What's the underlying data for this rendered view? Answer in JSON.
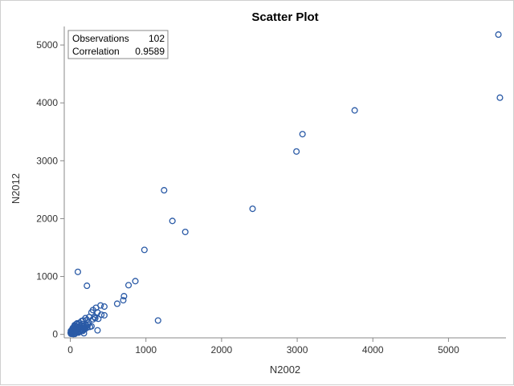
{
  "chart_data": {
    "type": "scatter",
    "title": "Scatter Plot",
    "xlabel": "N2002",
    "ylabel": "N2012",
    "xlim": [
      -80,
      5760
    ],
    "ylim": [
      -60,
      5320
    ],
    "xticks": [
      0,
      1000,
      2000,
      3000,
      4000,
      5000
    ],
    "yticks": [
      0,
      1000,
      2000,
      3000,
      4000,
      5000
    ],
    "grid": false,
    "marker": "circle-open",
    "color": "#2a5aa6",
    "inset": {
      "position": "top-left",
      "rows": [
        {
          "label": "Observations",
          "value": "102"
        },
        {
          "label": "Correlation",
          "value": "0.9589"
        }
      ]
    },
    "points": [
      [
        5660,
        5180
      ],
      [
        5680,
        4090
      ],
      [
        3760,
        3870
      ],
      [
        3070,
        3460
      ],
      [
        2990,
        3160
      ],
      [
        2410,
        2170
      ],
      [
        1240,
        2490
      ],
      [
        1350,
        1960
      ],
      [
        1520,
        1770
      ],
      [
        980,
        1460
      ],
      [
        860,
        920
      ],
      [
        770,
        850
      ],
      [
        710,
        660
      ],
      [
        700,
        590
      ],
      [
        620,
        530
      ],
      [
        1160,
        240
      ],
      [
        100,
        1080
      ],
      [
        220,
        840
      ],
      [
        450,
        480
      ],
      [
        400,
        500
      ],
      [
        340,
        460
      ],
      [
        300,
        420
      ],
      [
        280,
        380
      ],
      [
        360,
        380
      ],
      [
        410,
        340
      ],
      [
        450,
        330
      ],
      [
        250,
        300
      ],
      [
        200,
        280
      ],
      [
        220,
        250
      ],
      [
        170,
        240
      ],
      [
        150,
        230
      ],
      [
        120,
        200
      ],
      [
        90,
        190
      ],
      [
        80,
        180
      ],
      [
        110,
        170
      ],
      [
        60,
        150
      ],
      [
        130,
        150
      ],
      [
        180,
        140
      ],
      [
        260,
        130
      ],
      [
        300,
        260
      ],
      [
        330,
        280
      ],
      [
        370,
        270
      ],
      [
        240,
        200
      ],
      [
        200,
        170
      ],
      [
        160,
        180
      ],
      [
        140,
        120
      ],
      [
        100,
        110
      ],
      [
        70,
        100
      ],
      [
        50,
        90
      ],
      [
        40,
        80
      ],
      [
        30,
        70
      ],
      [
        20,
        60
      ],
      [
        15,
        50
      ],
      [
        10,
        40
      ],
      [
        25,
        30
      ],
      [
        35,
        25
      ],
      [
        45,
        40
      ],
      [
        55,
        55
      ],
      [
        65,
        45
      ],
      [
        75,
        65
      ],
      [
        85,
        75
      ],
      [
        95,
        85
      ],
      [
        105,
        95
      ],
      [
        115,
        105
      ],
      [
        125,
        115
      ],
      [
        135,
        95
      ],
      [
        145,
        80
      ],
      [
        155,
        70
      ],
      [
        165,
        60
      ],
      [
        175,
        110
      ],
      [
        185,
        100
      ],
      [
        195,
        90
      ],
      [
        205,
        130
      ],
      [
        215,
        150
      ],
      [
        225,
        120
      ],
      [
        235,
        170
      ],
      [
        180,
        20
      ],
      [
        360,
        70
      ],
      [
        280,
        140
      ],
      [
        320,
        300
      ],
      [
        10,
        10
      ],
      [
        20,
        15
      ],
      [
        30,
        20
      ],
      [
        40,
        5
      ],
      [
        50,
        12
      ],
      [
        60,
        8
      ],
      [
        5,
        25
      ],
      [
        12,
        35
      ],
      [
        18,
        45
      ],
      [
        8,
        60
      ],
      [
        22,
        75
      ],
      [
        28,
        95
      ],
      [
        33,
        110
      ],
      [
        48,
        130
      ],
      [
        58,
        160
      ],
      [
        68,
        120
      ],
      [
        78,
        140
      ],
      [
        88,
        60
      ],
      [
        98,
        40
      ],
      [
        108,
        30
      ],
      [
        118,
        55
      ],
      [
        128,
        65
      ]
    ]
  }
}
